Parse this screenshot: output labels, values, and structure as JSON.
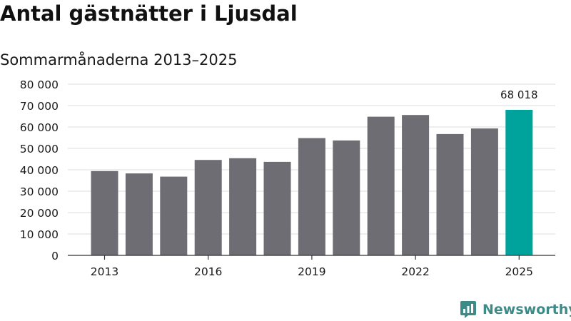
{
  "title": "Antal gästnätter i Ljusdal",
  "subtitle": "Sommarmånaderna 2013–2025",
  "brand": {
    "name": "Newsworthy",
    "logo_icon": "newsworthy-logo-icon",
    "color": "#3d8b88"
  },
  "chart_data": {
    "type": "bar",
    "categories": [
      "2013",
      "2014",
      "2015",
      "2016",
      "2017",
      "2018",
      "2019",
      "2020",
      "2021",
      "2022",
      "2023",
      "2024",
      "2025"
    ],
    "values": [
      39400,
      38300,
      36800,
      44600,
      45400,
      43700,
      54800,
      53700,
      64800,
      65600,
      56700,
      59300,
      68018
    ],
    "x_tick_labels": [
      "2013",
      "2016",
      "2019",
      "2022",
      "2025"
    ],
    "y_ticks": [
      0,
      10000,
      20000,
      30000,
      40000,
      50000,
      60000,
      70000,
      80000
    ],
    "y_tick_labels": [
      "0",
      "10 000",
      "20 000",
      "30 000",
      "40 000",
      "50 000",
      "60 000",
      "70 000",
      "80 000"
    ],
    "ylim": [
      0,
      80000
    ],
    "grid": true,
    "colors": {
      "default": "#6e6d73",
      "highlight": "#00a39b"
    },
    "highlight_index": 12,
    "annotations": [
      {
        "category": "2025",
        "text": "68 018"
      }
    ]
  }
}
